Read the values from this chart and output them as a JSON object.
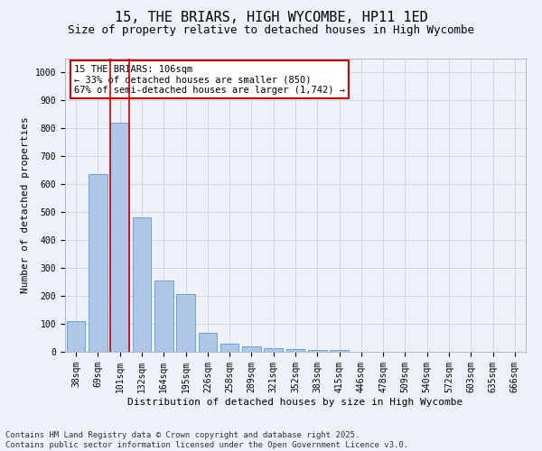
{
  "title_line1": "15, THE BRIARS, HIGH WYCOMBE, HP11 1ED",
  "title_line2": "Size of property relative to detached houses in High Wycombe",
  "xlabel": "Distribution of detached houses by size in High Wycombe",
  "ylabel": "Number of detached properties",
  "categories": [
    "38sqm",
    "69sqm",
    "101sqm",
    "132sqm",
    "164sqm",
    "195sqm",
    "226sqm",
    "258sqm",
    "289sqm",
    "321sqm",
    "352sqm",
    "383sqm",
    "415sqm",
    "446sqm",
    "478sqm",
    "509sqm",
    "540sqm",
    "572sqm",
    "603sqm",
    "635sqm",
    "666sqm"
  ],
  "values": [
    110,
    635,
    820,
    480,
    255,
    208,
    68,
    28,
    18,
    13,
    10,
    8,
    5,
    0,
    0,
    0,
    0,
    0,
    0,
    0,
    0
  ],
  "bar_color": "#aec6e8",
  "bar_edge_color": "#5b9bd5",
  "highlight_bar_index": 2,
  "highlight_color_edge": "#cc0000",
  "grid_color": "#d0d8e8",
  "bg_color": "#eef2f8",
  "annotation_text": "15 THE BRIARS: 106sqm\n← 33% of detached houses are smaller (850)\n67% of semi-detached houses are larger (1,742) →",
  "annotation_box_color": "#ffffff",
  "annotation_edge_color": "#cc0000",
  "ylim": [
    0,
    1050
  ],
  "yticks": [
    0,
    100,
    200,
    300,
    400,
    500,
    600,
    700,
    800,
    900,
    1000
  ],
  "footer_text": "Contains HM Land Registry data © Crown copyright and database right 2025.\nContains public sector information licensed under the Open Government Licence v3.0.",
  "title_fontsize": 11,
  "subtitle_fontsize": 9,
  "axis_label_fontsize": 8,
  "tick_fontsize": 7,
  "annotation_fontsize": 7.5,
  "footer_fontsize": 6.5
}
